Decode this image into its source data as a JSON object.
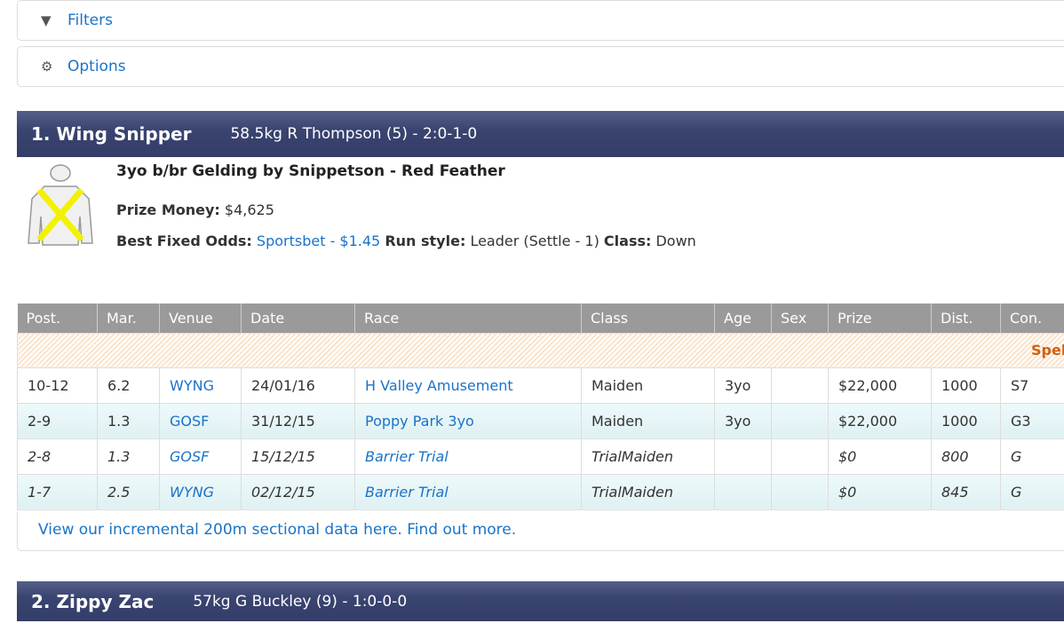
{
  "panels": {
    "filters": "Filters",
    "options": "Options"
  },
  "runners": [
    {
      "name": "1. Wing Snipper",
      "meta": "58.5kg R Thompson (5) - 2:0-1-0",
      "breeding": "3yo b/br Gelding by Snippetson - Red Feather",
      "prize_label": "Prize Money:",
      "prize": "$4,625",
      "odds_label": "Best Fixed Odds:",
      "odds": "Sportsbet - $1.45",
      "run_style_label": "Run style:",
      "run_style": "Leader (Settle - 1)",
      "class_label": "Class:",
      "class": "Down",
      "silks_colors": {
        "body": "#f0f0f0",
        "cross": "#f2f200"
      }
    },
    {
      "name": "2. Zippy Zac",
      "meta": "57kg G Buckley (9) - 1:0-0-0"
    }
  ],
  "form_table": {
    "headers": [
      "Post.",
      "Mar.",
      "Venue",
      "Date",
      "Race",
      "Class",
      "Age",
      "Sex",
      "Prize",
      "Dist.",
      "Con."
    ],
    "spell_label": "Spell -",
    "rows": [
      [
        "10-12",
        "6.2",
        "WYNG",
        "24/01/16",
        "H Valley Amusement",
        "Maiden",
        "3yo",
        "",
        "$22,000",
        "1000",
        "S7"
      ],
      [
        "2-9",
        "1.3",
        "GOSF",
        "31/12/15",
        "Poppy Park 3yo",
        "Maiden",
        "3yo",
        "",
        "$22,000",
        "1000",
        "G3"
      ],
      [
        "2-8",
        "1.3",
        "GOSF",
        "15/12/15",
        "Barrier Trial",
        "TrialMaiden",
        "",
        "",
        "$0",
        "800",
        "G"
      ],
      [
        "1-7",
        "2.5",
        "WYNG",
        "02/12/15",
        "Barrier Trial",
        "TrialMaiden",
        "",
        "",
        "$0",
        "845",
        "G"
      ]
    ]
  },
  "sectional_link": "View our incremental 200m sectional data here. Find out more."
}
